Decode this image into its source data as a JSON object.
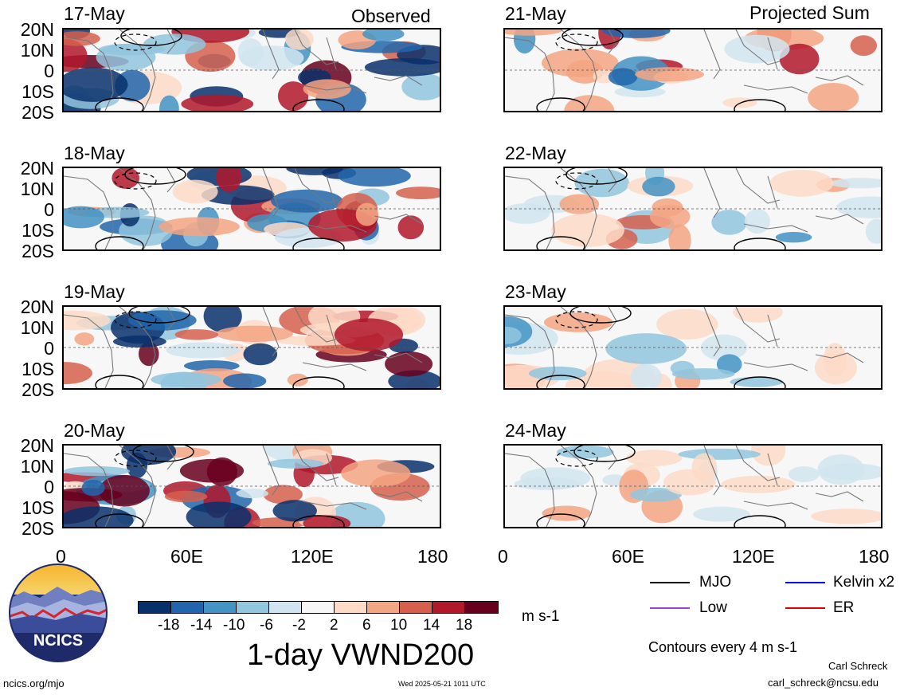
{
  "left_header": "Observed",
  "right_header": "Projected Sum",
  "left_panels": [
    "17-May",
    "18-May",
    "19-May",
    "20-May"
  ],
  "right_panels": [
    "21-May",
    "22-May",
    "23-May",
    "24-May"
  ],
  "lat_labels": [
    "20N",
    "10N",
    "0",
    "10S",
    "20S"
  ],
  "lon_labels": [
    "0",
    "60E",
    "120E",
    "180"
  ],
  "colorbar": {
    "tick_labels": [
      "-18",
      "-14",
      "-10",
      "-6",
      "-2",
      "2",
      "6",
      "10",
      "14",
      "18"
    ],
    "colors": [
      "#08306b",
      "#2166ac",
      "#4393c3",
      "#92c5de",
      "#d1e5f0",
      "#f7f7f7",
      "#fddbc7",
      "#f4a582",
      "#d6604d",
      "#b2182b",
      "#67001f"
    ],
    "units": "m s-1"
  },
  "title": "1-day VWND200",
  "legend": [
    {
      "label": "MJO",
      "color": "#000000"
    },
    {
      "label": "Kelvin x2",
      "color": "#0000ff"
    },
    {
      "label": "Low",
      "color": "#a040e0"
    },
    {
      "label": "ER",
      "color": "#e00000"
    }
  ],
  "contour_note": "Contours every 4 m s-1",
  "author": "Carl Schreck",
  "email": "carl_schreck@ncsu.edu",
  "website": "ncics.org/mjo",
  "timestamp": "Wed 2025-05-21 1011 UTC",
  "logo_text": "NCICS"
}
